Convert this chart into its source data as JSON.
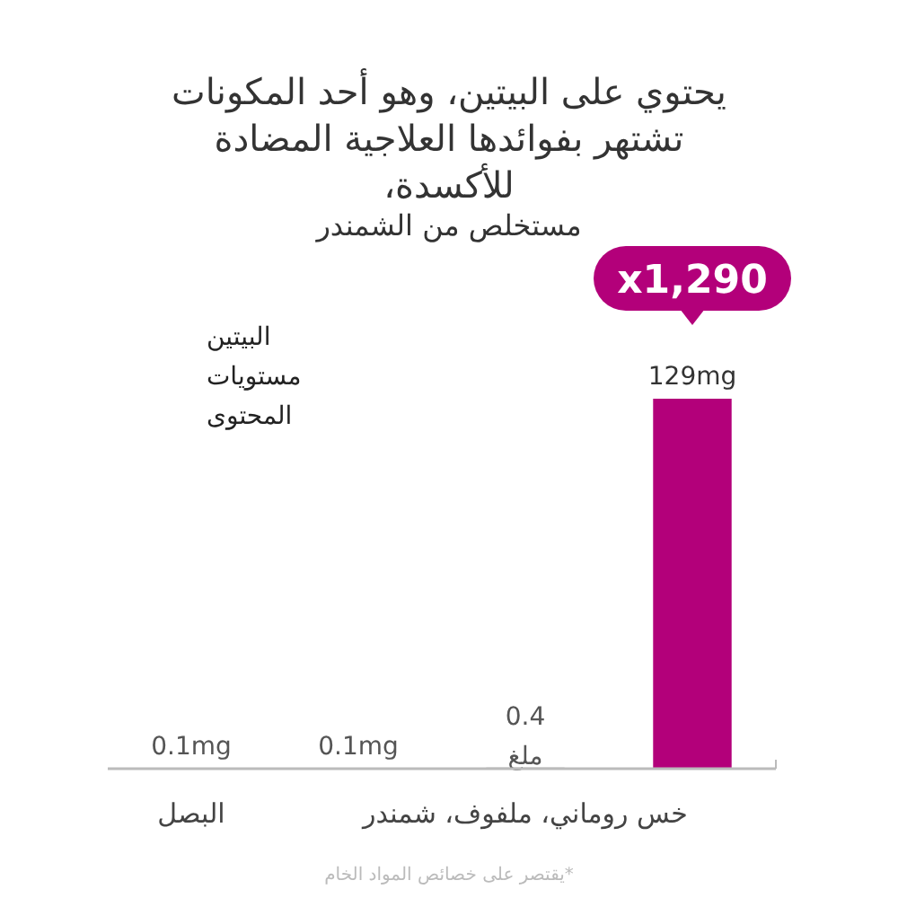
{
  "chart_data": {
    "type": "bar",
    "title": "يحتوي على البيتين، وهو أحد المكونات\nتشتهر بفوائدها العلاجية المضادة\nللأكسدة،",
    "subtitle": "مستخلص من الشمندر",
    "ylabel": "البيتين\nمستويات\nالمحتوى",
    "categories": [
      "البصل",
      null,
      "خس روماني، ملفوف، شمندر",
      null
    ],
    "values": [
      0.1,
      0.1,
      0.4,
      129
    ],
    "colors": [
      "#a3a3a3",
      "#a3a3a3",
      "#a3a3a3",
      "#b3007a"
    ],
    "value_labels": [
      "0.1mg",
      "0.1mg",
      "0.4\nملغ",
      "129mg"
    ],
    "annotations": [
      "x1,290",
      "*يقتصر على خصائص المواد الخام"
    ]
  }
}
